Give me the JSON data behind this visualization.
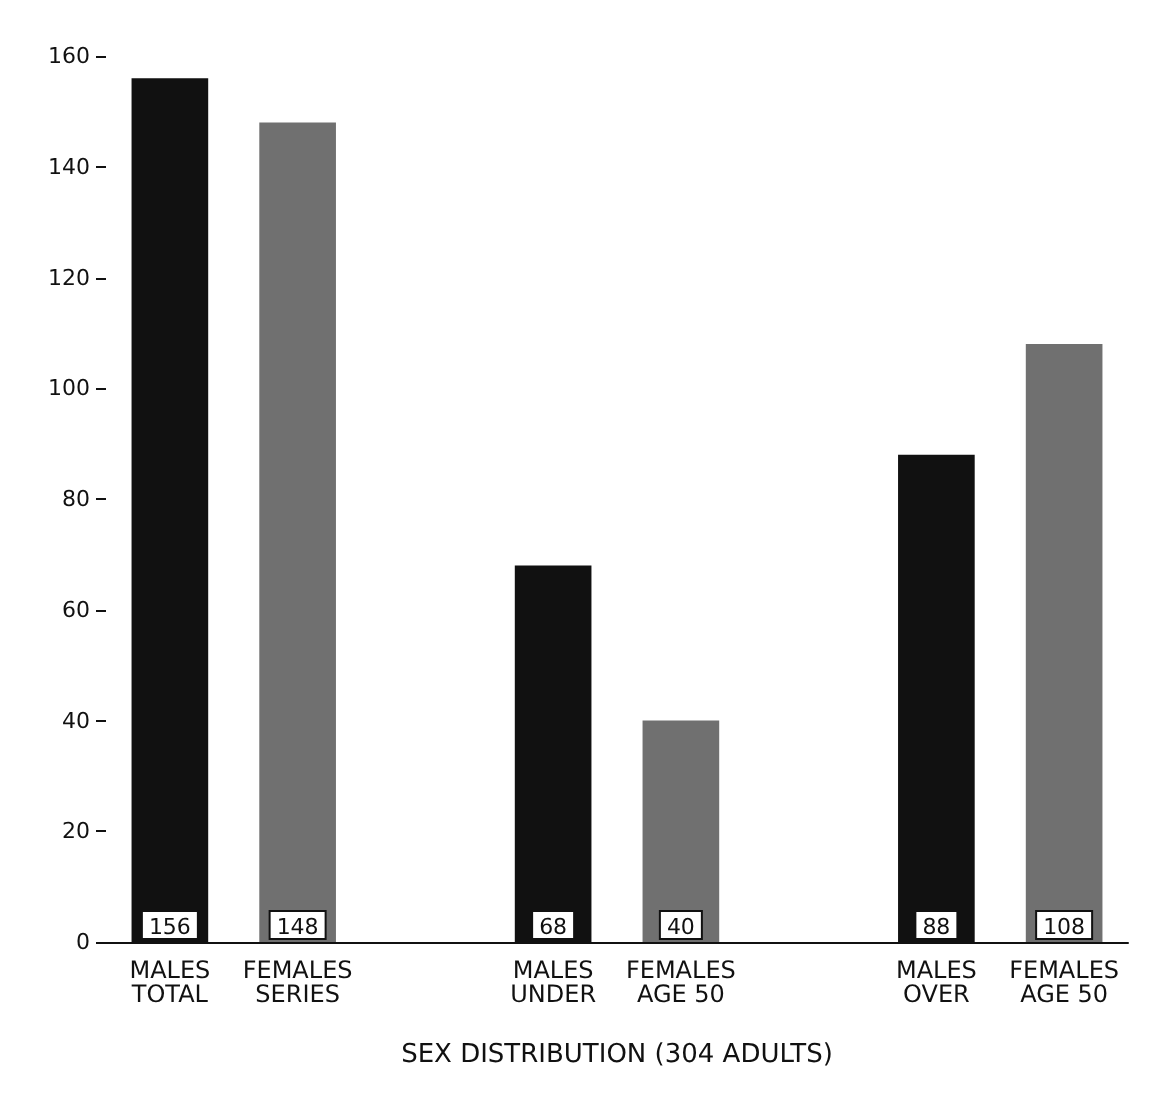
{
  "chart_data": {
    "type": "bar",
    "xlabel": "SEX DISTRIBUTION (304 ADULTS)",
    "categories": [
      "MALES\nTOTAL",
      "FEMALES\nSERIES",
      null,
      "MALES\nUNDER",
      "FEMALES\nAGE 50",
      null,
      "MALES\nOVER",
      "FEMALES\nAGE 50"
    ],
    "values": [
      156,
      148,
      null,
      68,
      40,
      null,
      88,
      108
    ],
    "colors": [
      "#111111",
      "#707070",
      null,
      "#111111",
      "#707070",
      null,
      "#111111",
      "#707070"
    ],
    "ylim": [
      0,
      160
    ],
    "yticks": [
      0,
      20,
      40,
      60,
      80,
      100,
      120,
      140,
      160
    ],
    "grid": false,
    "data_labels": true
  }
}
